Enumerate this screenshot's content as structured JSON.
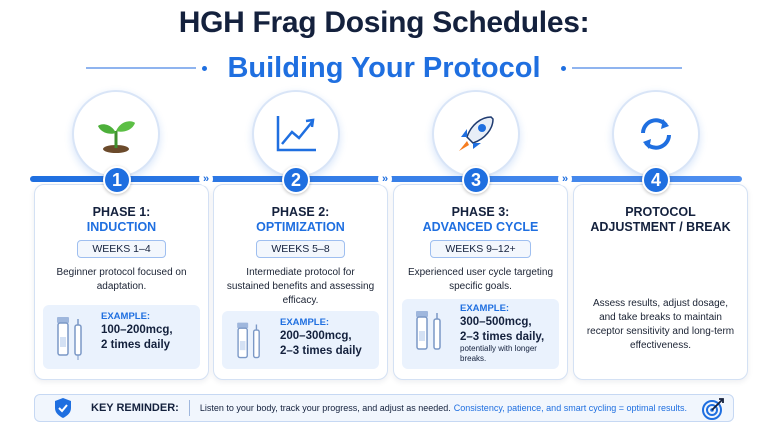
{
  "title": {
    "line1": "HGH Frag Dosing Schedules:",
    "line2": "Building Your Protocol"
  },
  "colors": {
    "accent": "#1f6fe0",
    "dark": "#14213d",
    "card_border": "#d4e1f4"
  },
  "phases": [
    {
      "number": "1",
      "icon": "sprout-icon",
      "label": "PHASE 1:",
      "name": "INDUCTION",
      "weeks": "WEEKS 1–4",
      "description": "Beginner protocol focused on adaptation.",
      "example_title": "EXAMPLE:",
      "example_dose1": "100–200mcg,",
      "example_dose2": "2 times daily"
    },
    {
      "number": "2",
      "icon": "growth-chart-icon",
      "label": "PHASE 2:",
      "name": "OPTIMIZATION",
      "weeks": "WEEKS 5–8",
      "description": "Intermediate protocol for sustained benefits and assessing efficacy.",
      "example_title": "EXAMPLE:",
      "example_dose1": "200–300mcg,",
      "example_dose2": "2–3 times daily"
    },
    {
      "number": "3",
      "icon": "rocket-icon",
      "label": "PHASE 3:",
      "name": "ADVANCED CYCLE",
      "weeks": "WEEKS 9–12+",
      "description": "Experienced user cycle targeting specific goals.",
      "example_title": "EXAMPLE:",
      "example_dose1": "300–500mcg,",
      "example_dose2": "2–3 times daily,",
      "example_note": "potentially with longer breaks."
    },
    {
      "number": "4",
      "icon": "cycle-arrows-icon",
      "label": "PROTOCOL",
      "name": "ADJUSTMENT / BREAK",
      "description": "Assess results, adjust dosage, and take breaks to maintain receptor sensitivity and long-term effectiveness."
    }
  ],
  "reminder": {
    "icon": "shield-check-icon",
    "title": "KEY REMINDER:",
    "text": "Listen to your body, track your progress, and adjust as needed.",
    "highlight": "Consistency, patience, and smart cycling = optimal results.",
    "end_icon": "target-icon"
  }
}
